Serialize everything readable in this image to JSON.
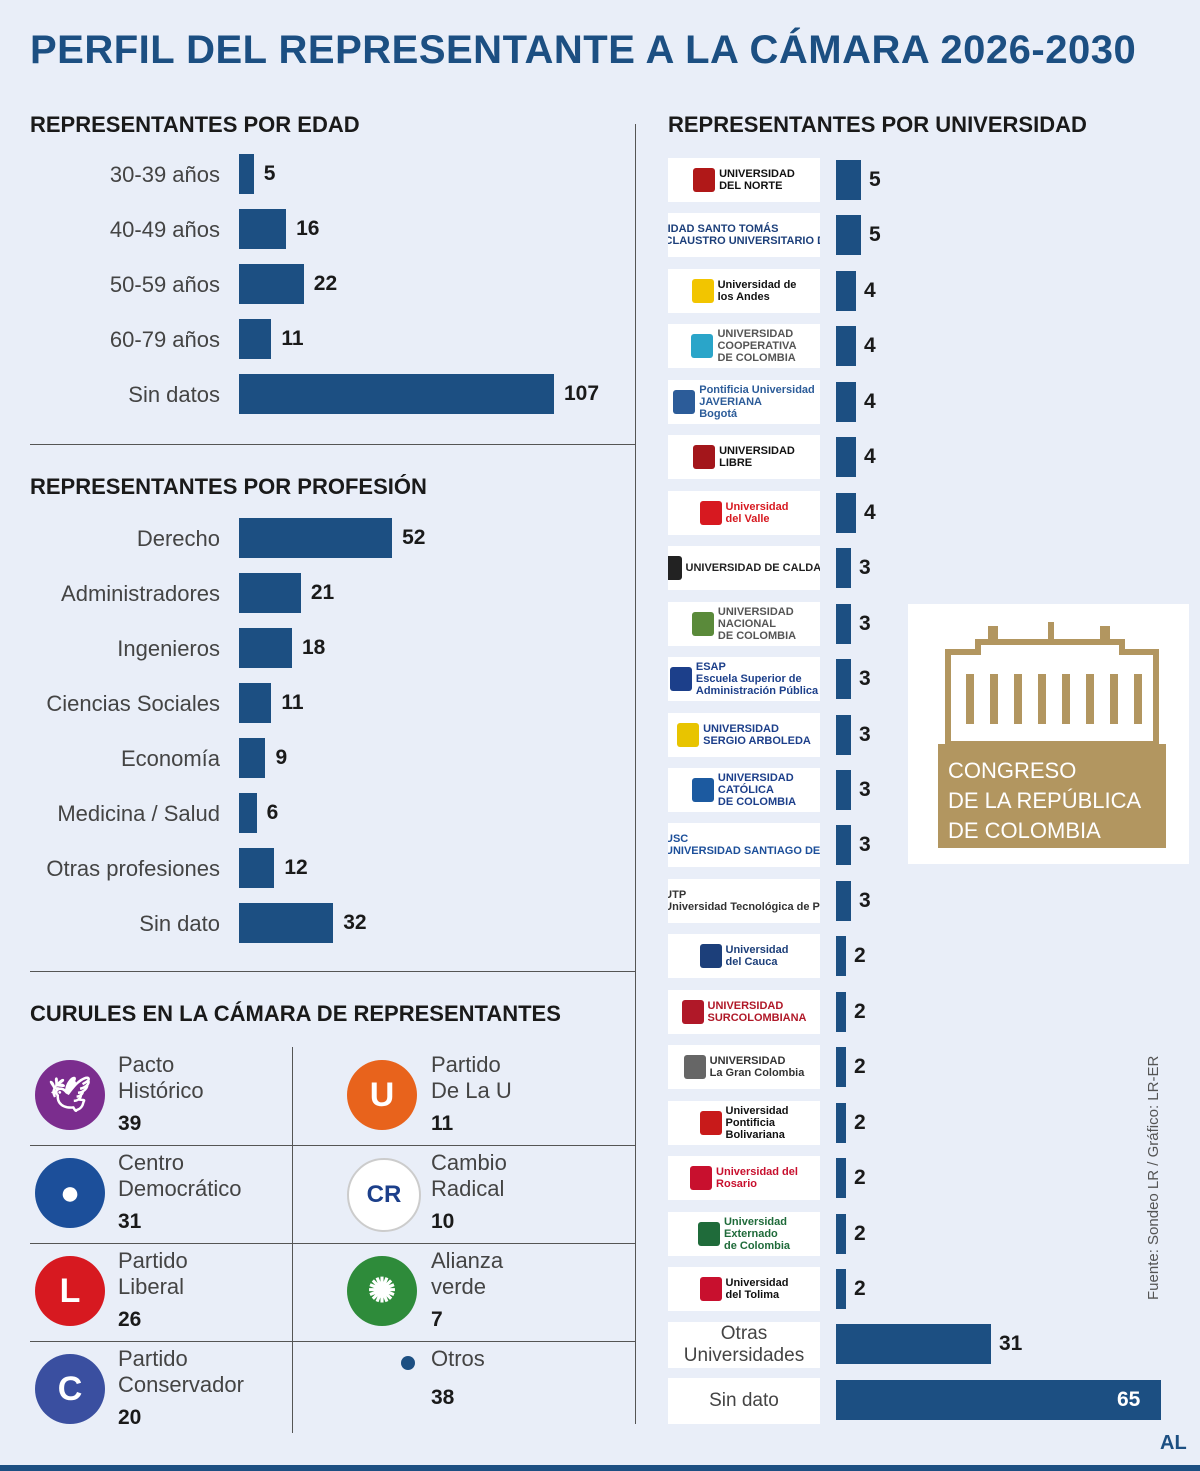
{
  "title": "PERFIL DEL REPRESENTANTE A LA CÁMARA 2026-2030",
  "colors": {
    "bar": "#1c4f82",
    "background": "#e9eef8",
    "title": "#1c4f82"
  },
  "chart_data": [
    {
      "type": "bar",
      "orientation": "horizontal",
      "title": "REPRESENTANTES POR EDAD",
      "categories": [
        "30-39 años",
        "40-49 años",
        "50-59 años",
        "60-79 años",
        "Sin datos"
      ],
      "values": [
        5,
        16,
        22,
        11,
        107
      ]
    },
    {
      "type": "bar",
      "orientation": "horizontal",
      "title": "REPRESENTANTES POR PROFESIÓN",
      "categories": [
        "Derecho",
        "Administradores",
        "Ingenieros",
        "Ciencias Sociales",
        "Economía",
        "Medicina / Salud",
        "Otras profesiones",
        "Sin dato"
      ],
      "values": [
        52,
        21,
        18,
        11,
        9,
        6,
        12,
        32
      ]
    },
    {
      "type": "bar",
      "orientation": "horizontal",
      "title": "REPRESENTANTES POR UNIVERSIDAD",
      "categories": [
        {
          "name": "UNIVERSIDAD DEL NORTE",
          "lines": [
            "UNIVERSIDAD",
            "DEL NORTE"
          ],
          "logo_color": "#b01818",
          "text_color": "#111111"
        },
        {
          "name": "UNIVERSIDAD SANTO TOMAS",
          "lines": [
            "UNIVERSIDAD SANTO TOMÁS",
            "PRIMER CLAUSTRO UNIVERSITARIO DE COLOMBIA"
          ],
          "logo_color": "#1c3f7a",
          "text_color": "#1c3f7a"
        },
        {
          "name": "Universidad de los Andes",
          "lines": [
            "Universidad de",
            "los Andes"
          ],
          "logo_color": "#f2c500",
          "text_color": "#111111"
        },
        {
          "name": "UNIVERSIDAD COOPERATIVA DE COLOMBIA",
          "lines": [
            "UNIVERSIDAD",
            "COOPERATIVA",
            "DE COLOMBIA"
          ],
          "logo_color": "#2aa5c9",
          "text_color": "#555555"
        },
        {
          "name": "Pontificia Universidad JAVERIANA Bogotá",
          "lines": [
            "Pontificia Universidad",
            "JAVERIANA",
            "Bogotá"
          ],
          "logo_color": "#2c5c99",
          "text_color": "#2c5c99"
        },
        {
          "name": "UNIVERSIDAD LIBRE",
          "lines": [
            "UNIVERSIDAD",
            "LIBRE"
          ],
          "logo_color": "#a3161b",
          "text_color": "#111111"
        },
        {
          "name": "Universidad del Valle",
          "lines": [
            "Universidad",
            "del Valle"
          ],
          "logo_color": "#d71920",
          "text_color": "#d71920"
        },
        {
          "name": "Universidad de Caldas",
          "lines": [
            "UNIVERSIDAD DE CALDAS"
          ],
          "logo_color": "#222222",
          "text_color": "#222222"
        },
        {
          "name": "UNIVERSIDAD NACIONAL DE COLOMBIA",
          "lines": [
            "UNIVERSIDAD",
            "NACIONAL",
            "DE COLOMBIA"
          ],
          "logo_color": "#5a8a3a",
          "text_color": "#555555"
        },
        {
          "name": "ESAP Escuela Superior de Administración Pública",
          "lines": [
            "ESAP",
            "Escuela Superior de",
            "Administración Pública"
          ],
          "logo_color": "#1c3f8a",
          "text_color": "#1c3f8a"
        },
        {
          "name": "UNIVERSIDAD SERGIO ARBOLEDA",
          "lines": [
            "UNIVERSIDAD",
            "SERGIO ARBOLEDA"
          ],
          "logo_color": "#e8c400",
          "text_color": "#1c3f8a"
        },
        {
          "name": "UNIVERSIDAD CATÓLICA DE COLOMBIA",
          "lines": [
            "UNIVERSIDAD",
            "CATÓLICA",
            "DE COLOMBIA"
          ],
          "logo_color": "#1c5aa0",
          "text_color": "#1c3f8a"
        },
        {
          "name": "USC Universidad Santiago de Cali",
          "lines": [
            "USC",
            "UNIVERSIDAD SANTIAGO DE CALI"
          ],
          "logo_color": "#1c4f9a",
          "text_color": "#1c4f9a"
        },
        {
          "name": "UTP Universidad Tecnológica de Pereira",
          "lines": [
            "UTP",
            "Universidad Tecnológica de Pereira"
          ],
          "logo_color": "#e0541c",
          "text_color": "#333333"
        },
        {
          "name": "Universidad del Cauca",
          "lines": [
            "Universidad",
            "del Cauca"
          ],
          "logo_color": "#1c3f7a",
          "text_color": "#1c3f7a"
        },
        {
          "name": "UNIVERSIDAD SURCOLOMBIANA",
          "lines": [
            "UNIVERSIDAD",
            "SURCOLOMBIANA"
          ],
          "logo_color": "#b01828",
          "text_color": "#b01828"
        },
        {
          "name": "UNIVERSIDAD La Gran Colombia",
          "lines": [
            "UNIVERSIDAD",
            "La Gran Colombia"
          ],
          "logo_color": "#666666",
          "text_color": "#333333"
        },
        {
          "name": "Universidad Pontificia Bolivariana",
          "lines": [
            "Universidad",
            "Pontificia",
            "Bolivariana"
          ],
          "logo_color": "#c81a1a",
          "text_color": "#111111"
        },
        {
          "name": "Universidad del Rosario",
          "lines": [
            "Universidad del",
            "Rosario"
          ],
          "logo_color": "#c8102e",
          "text_color": "#c8102e"
        },
        {
          "name": "Universidad Externado de Colombia",
          "lines": [
            "Universidad",
            "Externado",
            "de Colombia"
          ],
          "logo_color": "#1f6b3a",
          "text_color": "#1f6b3a"
        },
        {
          "name": "Universidad del Tolima",
          "lines": [
            "Universidad",
            "del Tolima"
          ],
          "logo_color": "#c8102e",
          "text_color": "#111111"
        },
        {
          "name": "Otras Universidades",
          "lines": [
            "Otras",
            "Universidades"
          ],
          "plain": true
        },
        {
          "name": "Sin dato",
          "lines": [
            "Sin dato"
          ],
          "plain": true
        }
      ],
      "values": [
        5,
        5,
        4,
        4,
        4,
        4,
        4,
        3,
        3,
        3,
        3,
        3,
        3,
        3,
        2,
        2,
        2,
        2,
        2,
        2,
        2,
        31,
        65
      ]
    },
    {
      "type": "table",
      "title": "CURULES EN LA CÁMARA DE REPRESENTANTES",
      "rows": [
        {
          "party": [
            "Pacto",
            "Histórico"
          ],
          "seats": 39,
          "color": "#7b2d8e",
          "icon": "dove-icon",
          "glyph": "🕊"
        },
        {
          "party": [
            "Partido",
            "De La U"
          ],
          "seats": 11,
          "color": "#e8631c",
          "icon": "u-letter-icon",
          "glyph": "U"
        },
        {
          "party": [
            "Centro",
            "Democrático"
          ],
          "seats": 31,
          "color": "#1c4f9a",
          "icon": "person-silhouette-icon",
          "glyph": "●"
        },
        {
          "party": [
            "Cambio",
            "Radical"
          ],
          "seats": 10,
          "color": "#ffffff",
          "icon": "cr-letters-icon",
          "glyph": "CR"
        },
        {
          "party": [
            "Partido",
            "Liberal"
          ],
          "seats": 26,
          "color": "#d71920",
          "icon": "l-letter-icon",
          "glyph": "L"
        },
        {
          "party": [
            "Alianza",
            "verde"
          ],
          "seats": 7,
          "color": "#2e8b3a",
          "icon": "sunflower-icon",
          "glyph": "✺"
        },
        {
          "party": [
            "Partido",
            "Conservador"
          ],
          "seats": 20,
          "color": "#3a4fa0",
          "icon": "c-letter-icon",
          "glyph": "C"
        },
        {
          "party": [
            "Otros"
          ],
          "seats": 38,
          "color": "#1c4f82",
          "icon": "dot-icon",
          "glyph": "●"
        }
      ]
    }
  ],
  "congreso": {
    "lines": [
      "CONGRESO",
      "DE LA REPÚBLICA",
      "DE COLOMBIA"
    ],
    "color": "#b29660"
  },
  "source": "Fuente: Sondeo LR / Gráfico: LR-ER",
  "brand": "AL"
}
